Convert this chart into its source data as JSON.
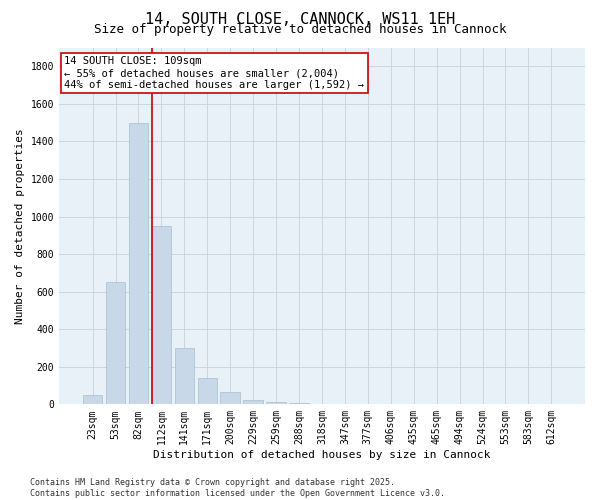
{
  "title": "14, SOUTH CLOSE, CANNOCK, WS11 1EH",
  "subtitle": "Size of property relative to detached houses in Cannock",
  "xlabel": "Distribution of detached houses by size in Cannock",
  "ylabel": "Number of detached properties",
  "categories": [
    "23sqm",
    "53sqm",
    "82sqm",
    "112sqm",
    "141sqm",
    "171sqm",
    "200sqm",
    "229sqm",
    "259sqm",
    "288sqm",
    "318sqm",
    "347sqm",
    "377sqm",
    "406sqm",
    "435sqm",
    "465sqm",
    "494sqm",
    "524sqm",
    "553sqm",
    "583sqm",
    "612sqm"
  ],
  "values": [
    50,
    650,
    1500,
    950,
    300,
    140,
    65,
    25,
    15,
    8,
    4,
    3,
    2,
    1,
    1,
    0,
    0,
    0,
    0,
    0,
    0
  ],
  "bar_color": "#c8d8e8",
  "bar_edge_color": "#a8bece",
  "vline_color": "#cc0000",
  "vline_pos": 2.57,
  "annotation_text": "14 SOUTH CLOSE: 109sqm\n← 55% of detached houses are smaller (2,004)\n44% of semi-detached houses are larger (1,592) →",
  "annotation_box_color": "#ffffff",
  "annotation_box_edge": "#cc0000",
  "ylim": [
    0,
    1900
  ],
  "yticks": [
    0,
    200,
    400,
    600,
    800,
    1000,
    1200,
    1400,
    1600,
    1800
  ],
  "footer_line1": "Contains HM Land Registry data © Crown copyright and database right 2025.",
  "footer_line2": "Contains public sector information licensed under the Open Government Licence v3.0.",
  "bg_color": "#ffffff",
  "plot_bg_color": "#e8f0f8",
  "grid_color": "#c8d0da",
  "title_fontsize": 11,
  "subtitle_fontsize": 9,
  "axis_label_fontsize": 8,
  "tick_fontsize": 7,
  "annotation_fontsize": 7.5,
  "footer_fontsize": 6
}
